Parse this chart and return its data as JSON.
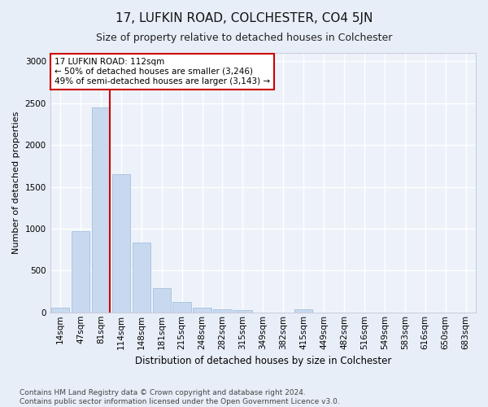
{
  "title": "17, LUFKIN ROAD, COLCHESTER, CO4 5JN",
  "subtitle": "Size of property relative to detached houses in Colchester",
  "xlabel": "Distribution of detached houses by size in Colchester",
  "ylabel": "Number of detached properties",
  "bar_labels": [
    "14sqm",
    "47sqm",
    "81sqm",
    "114sqm",
    "148sqm",
    "181sqm",
    "215sqm",
    "248sqm",
    "282sqm",
    "315sqm",
    "349sqm",
    "382sqm",
    "415sqm",
    "449sqm",
    "482sqm",
    "516sqm",
    "549sqm",
    "583sqm",
    "616sqm",
    "650sqm",
    "683sqm"
  ],
  "bar_values": [
    55,
    975,
    2450,
    1650,
    830,
    285,
    120,
    55,
    40,
    30,
    0,
    0,
    35,
    0,
    0,
    0,
    0,
    0,
    0,
    0,
    0
  ],
  "bar_color": "#c8d9ef",
  "bar_edge_color": "#9ab8d8",
  "vline_color": "#cc0000",
  "annotation_text": "17 LUFKIN ROAD: 112sqm\n← 50% of detached houses are smaller (3,246)\n49% of semi-detached houses are larger (3,143) →",
  "annotation_box_color": "white",
  "annotation_box_edge": "#cc0000",
  "ylim": [
    0,
    3100
  ],
  "yticks": [
    0,
    500,
    1000,
    1500,
    2000,
    2500,
    3000
  ],
  "footer": "Contains HM Land Registry data © Crown copyright and database right 2024.\nContains public sector information licensed under the Open Government Licence v3.0.",
  "bg_color": "#e8eef8",
  "plot_bg_color": "#edf2fa",
  "grid_color": "white",
  "title_fontsize": 11,
  "subtitle_fontsize": 9,
  "xlabel_fontsize": 8.5,
  "ylabel_fontsize": 8,
  "tick_fontsize": 7.5,
  "footer_fontsize": 6.5
}
